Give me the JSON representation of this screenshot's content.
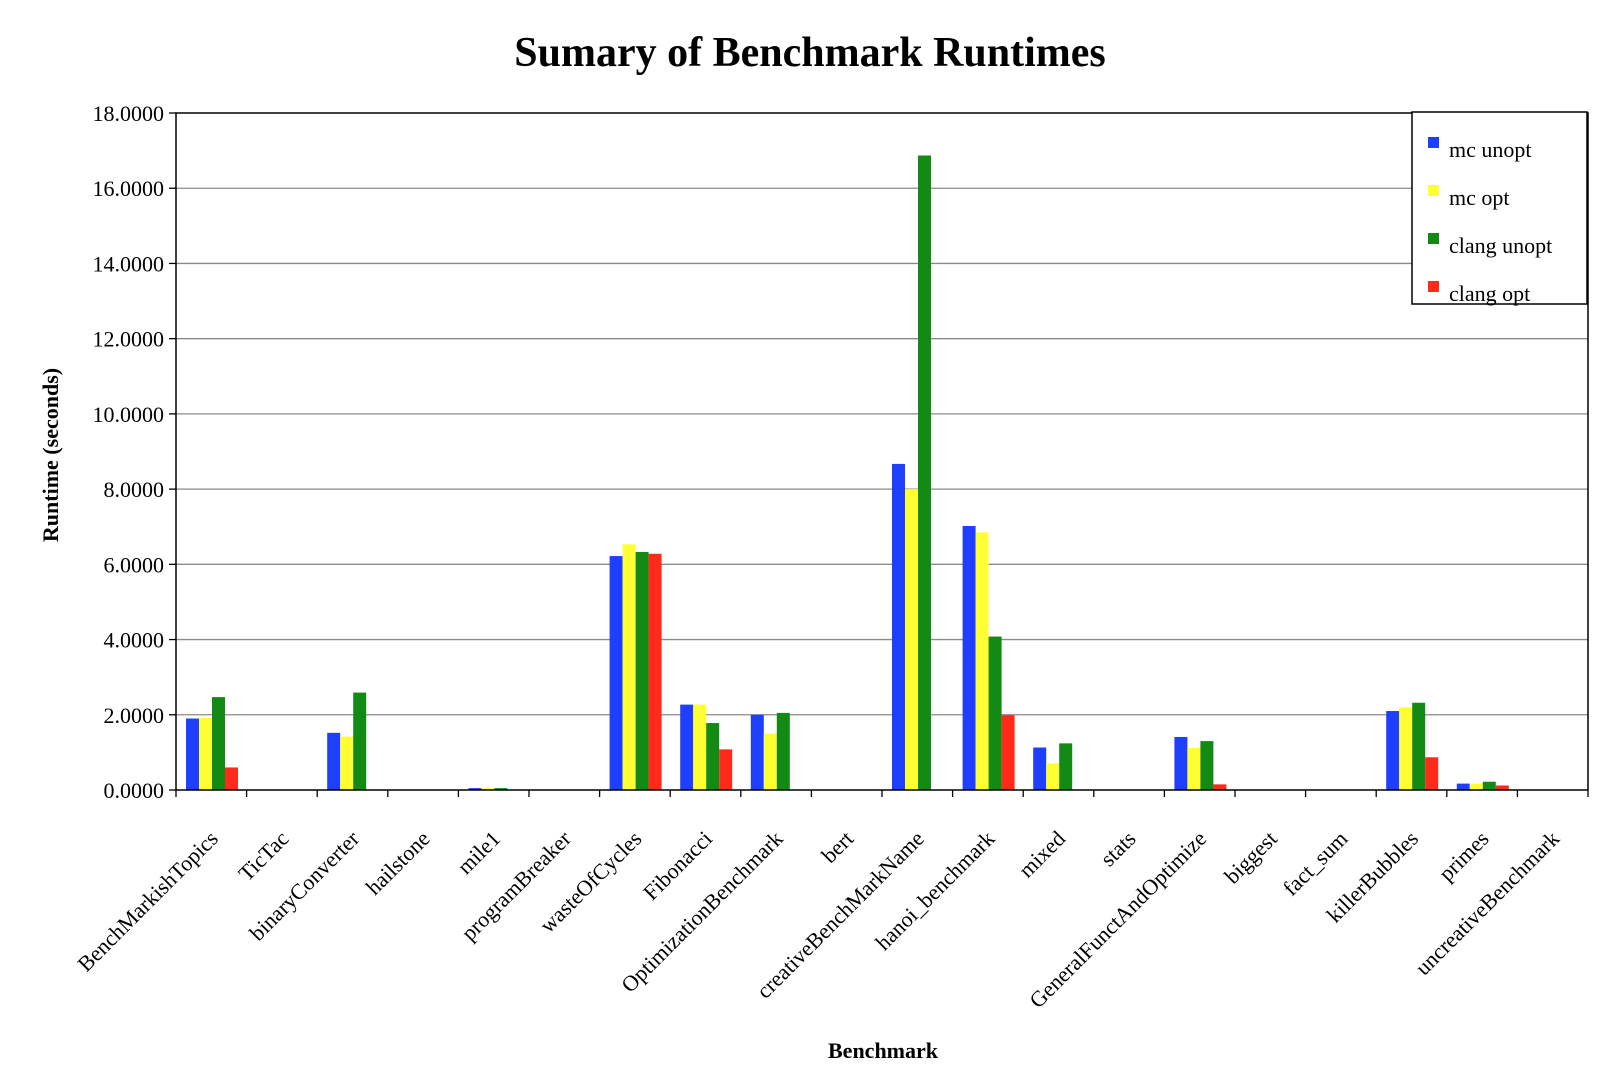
{
  "chart_data": {
    "type": "bar",
    "title": "Sumary of Benchmark Runtimes",
    "xlabel": "Benchmark",
    "ylabel": "Runtime (seconds)",
    "ylim": [
      0,
      18
    ],
    "yticks": [
      "0.0000",
      "2.0000",
      "4.0000",
      "6.0000",
      "8.0000",
      "10.0000",
      "12.0000",
      "14.0000",
      "16.0000",
      "18.0000"
    ],
    "grid": true,
    "legend_position": "top-right",
    "categories": [
      "BenchMarkishTopics",
      "TicTac",
      "binaryConverter",
      "hailstone",
      "mile1",
      "programBreaker",
      "wasteOfCycles",
      "Fibonacci",
      "OptimizationBenchmark",
      "bert",
      "creativeBenchMarkName",
      "hanoi_benchmark",
      "mixed",
      "stats",
      "GeneralFunctAndOptimize",
      "biggest",
      "fact_sum",
      "killerBubbles",
      "primes",
      "uncreativeBenchmark"
    ],
    "series": [
      {
        "name": "mc unopt",
        "color": "#1f3fff",
        "values": [
          1.9,
          0,
          1.52,
          0,
          0.05,
          0,
          6.22,
          2.27,
          2.0,
          0,
          8.67,
          7.02,
          1.13,
          0,
          1.41,
          0,
          0,
          2.1,
          0.17,
          0
        ]
      },
      {
        "name": "mc opt",
        "color": "#ffff33",
        "values": [
          1.92,
          0,
          1.42,
          0,
          0.05,
          0,
          6.53,
          2.27,
          1.5,
          0,
          8.0,
          6.85,
          0.71,
          0,
          1.12,
          0,
          0,
          2.2,
          0.17,
          0
        ]
      },
      {
        "name": "clang unopt",
        "color": "#138a13",
        "values": [
          2.47,
          0,
          2.59,
          0,
          0.05,
          0,
          6.33,
          1.78,
          2.05,
          0,
          16.87,
          4.08,
          1.24,
          0,
          1.3,
          0,
          0,
          2.32,
          0.22,
          0
        ]
      },
      {
        "name": "clang opt",
        "color": "#ff2a1a",
        "values": [
          0.6,
          0,
          0,
          0,
          0,
          0,
          6.28,
          1.08,
          0,
          0,
          0,
          1.99,
          0,
          0,
          0.15,
          0,
          0,
          0.87,
          0.12,
          0
        ]
      }
    ]
  }
}
